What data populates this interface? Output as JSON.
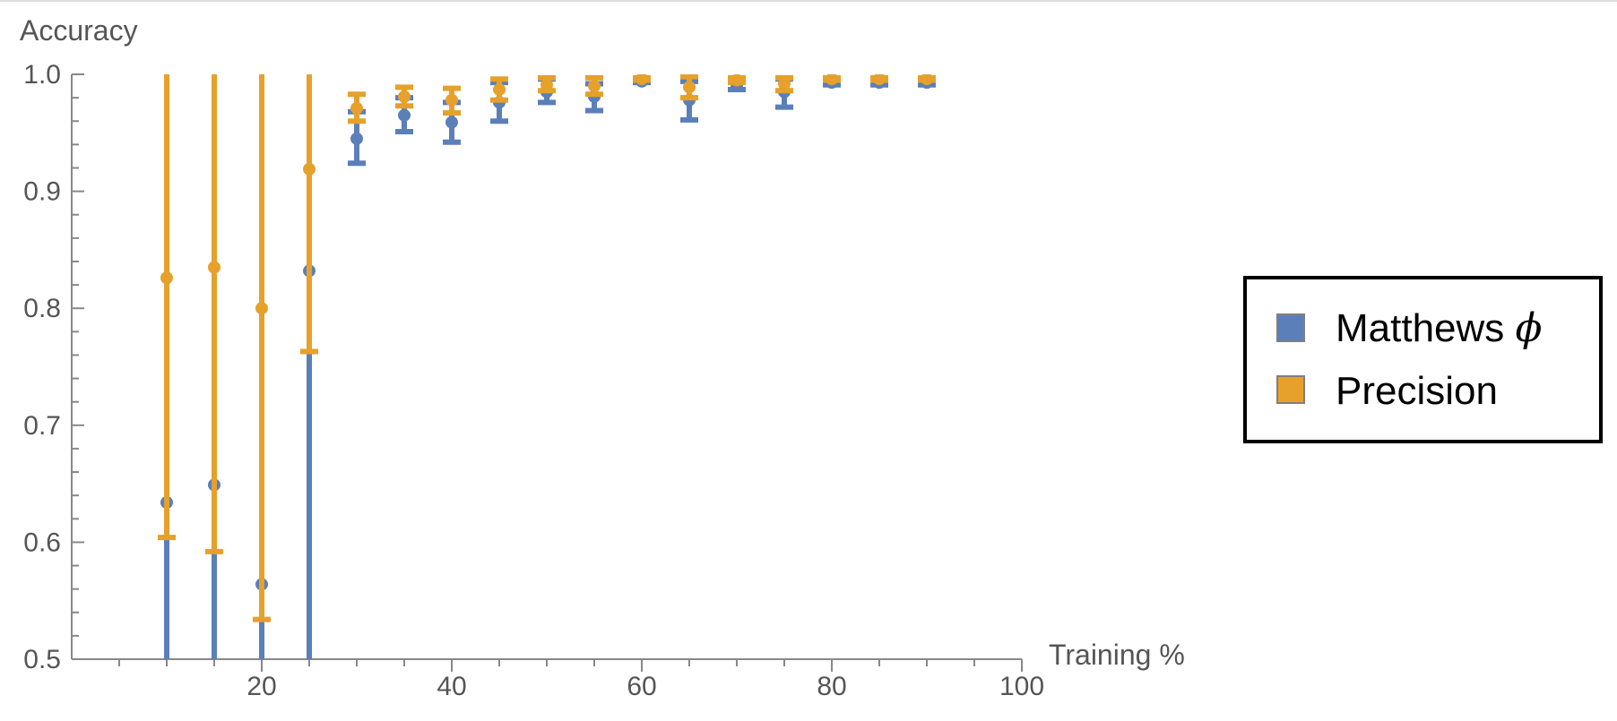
{
  "chart_data": {
    "type": "scatter",
    "title": "",
    "xlabel": "Training %",
    "ylabel": "Accuracy",
    "xlim": [
      0,
      100
    ],
    "ylim": [
      0.5,
      1.0
    ],
    "xticks": [
      20,
      40,
      60,
      80,
      100
    ],
    "xtick_labels": [
      "20",
      "40",
      "60",
      "80",
      "100"
    ],
    "yticks": [
      0.5,
      0.6,
      0.7,
      0.8,
      0.9,
      1.0
    ],
    "ytick_labels": [
      "0.5",
      "0.6",
      "0.7",
      "0.8",
      "0.9",
      "1.0"
    ],
    "grid": false,
    "legend_position": "right",
    "legend": {
      "items": [
        {
          "label": "Matthews ",
          "symbol": "ϕ",
          "color": "#5b7fb9"
        },
        {
          "label": "Precision",
          "symbol": "",
          "color": "#e5a12b"
        }
      ]
    },
    "series": [
      {
        "name": "Matthews ϕ",
        "color": "#5b7fb9",
        "points": [
          {
            "x": 10,
            "y": 0.634,
            "low": 0.0,
            "high": 1.0
          },
          {
            "x": 15,
            "y": 0.649,
            "low": 0.0,
            "high": 1.0
          },
          {
            "x": 20,
            "y": 0.564,
            "low": 0.0,
            "high": 1.0
          },
          {
            "x": 25,
            "y": 0.832,
            "low": 0.0,
            "high": 1.0
          },
          {
            "x": 30,
            "y": 0.945,
            "low": 0.924,
            "high": 0.968
          },
          {
            "x": 35,
            "y": 0.965,
            "low": 0.951,
            "high": 0.98
          },
          {
            "x": 40,
            "y": 0.959,
            "low": 0.942,
            "high": 0.976
          },
          {
            "x": 45,
            "y": 0.976,
            "low": 0.96,
            "high": 0.993
          },
          {
            "x": 50,
            "y": 0.985,
            "low": 0.976,
            "high": 0.996
          },
          {
            "x": 55,
            "y": 0.981,
            "low": 0.969,
            "high": 0.992
          },
          {
            "x": 60,
            "y": 0.994,
            "low": 0.993,
            "high": 0.996
          },
          {
            "x": 65,
            "y": 0.978,
            "low": 0.961,
            "high": 0.994
          },
          {
            "x": 70,
            "y": 0.99,
            "low": 0.987,
            "high": 0.994
          },
          {
            "x": 75,
            "y": 0.985,
            "low": 0.972,
            "high": 0.996
          },
          {
            "x": 80,
            "y": 0.993,
            "low": 0.991,
            "high": 0.995
          },
          {
            "x": 85,
            "y": 0.993,
            "low": 0.991,
            "high": 0.995
          },
          {
            "x": 90,
            "y": 0.993,
            "low": 0.991,
            "high": 0.995
          }
        ]
      },
      {
        "name": "Precision",
        "color": "#e5a12b",
        "points": [
          {
            "x": 10,
            "y": 0.826,
            "low": 0.604,
            "high": 1.0
          },
          {
            "x": 15,
            "y": 0.835,
            "low": 0.592,
            "high": 1.0
          },
          {
            "x": 20,
            "y": 0.8,
            "low": 0.534,
            "high": 1.0
          },
          {
            "x": 25,
            "y": 0.919,
            "low": 0.763,
            "high": 1.0
          },
          {
            "x": 30,
            "y": 0.971,
            "low": 0.96,
            "high": 0.983
          },
          {
            "x": 35,
            "y": 0.981,
            "low": 0.973,
            "high": 0.989
          },
          {
            "x": 40,
            "y": 0.978,
            "low": 0.967,
            "high": 0.988
          },
          {
            "x": 45,
            "y": 0.987,
            "low": 0.978,
            "high": 0.996
          },
          {
            "x": 50,
            "y": 0.991,
            "low": 0.986,
            "high": 0.997
          },
          {
            "x": 55,
            "y": 0.99,
            "low": 0.983,
            "high": 0.997
          },
          {
            "x": 60,
            "y": 0.996,
            "low": 0.995,
            "high": 0.997
          },
          {
            "x": 65,
            "y": 0.989,
            "low": 0.98,
            "high": 0.998
          },
          {
            "x": 70,
            "y": 0.995,
            "low": 0.993,
            "high": 0.997
          },
          {
            "x": 75,
            "y": 0.992,
            "low": 0.986,
            "high": 0.997
          },
          {
            "x": 80,
            "y": 0.996,
            "low": 0.995,
            "high": 0.997
          },
          {
            "x": 85,
            "y": 0.996,
            "low": 0.995,
            "high": 0.997
          },
          {
            "x": 90,
            "y": 0.996,
            "low": 0.995,
            "high": 0.997
          }
        ]
      }
    ]
  }
}
